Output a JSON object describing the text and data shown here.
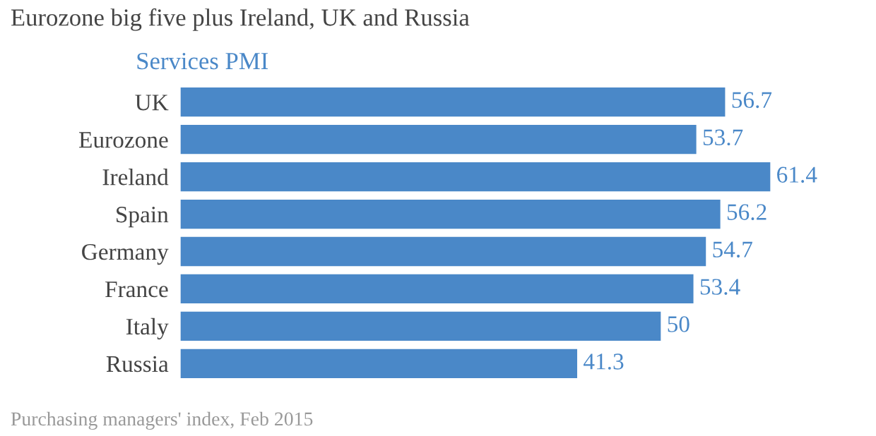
{
  "chart_data": {
    "type": "bar",
    "orientation": "horizontal",
    "title": "Eurozone big five plus Ireland, UK and Russia",
    "subtitle": "Services PMI",
    "categories": [
      "UK",
      "Eurozone",
      "Ireland",
      "Spain",
      "Germany",
      "France",
      "Italy",
      "Russia"
    ],
    "values": [
      56.7,
      53.7,
      61.4,
      56.2,
      54.7,
      53.4,
      50,
      41.3
    ],
    "color": "#4a88c8",
    "data_labels": true,
    "grid": false,
    "legend": false,
    "annotations": [
      "Purchasing managers' index, Feb 2015"
    ]
  }
}
